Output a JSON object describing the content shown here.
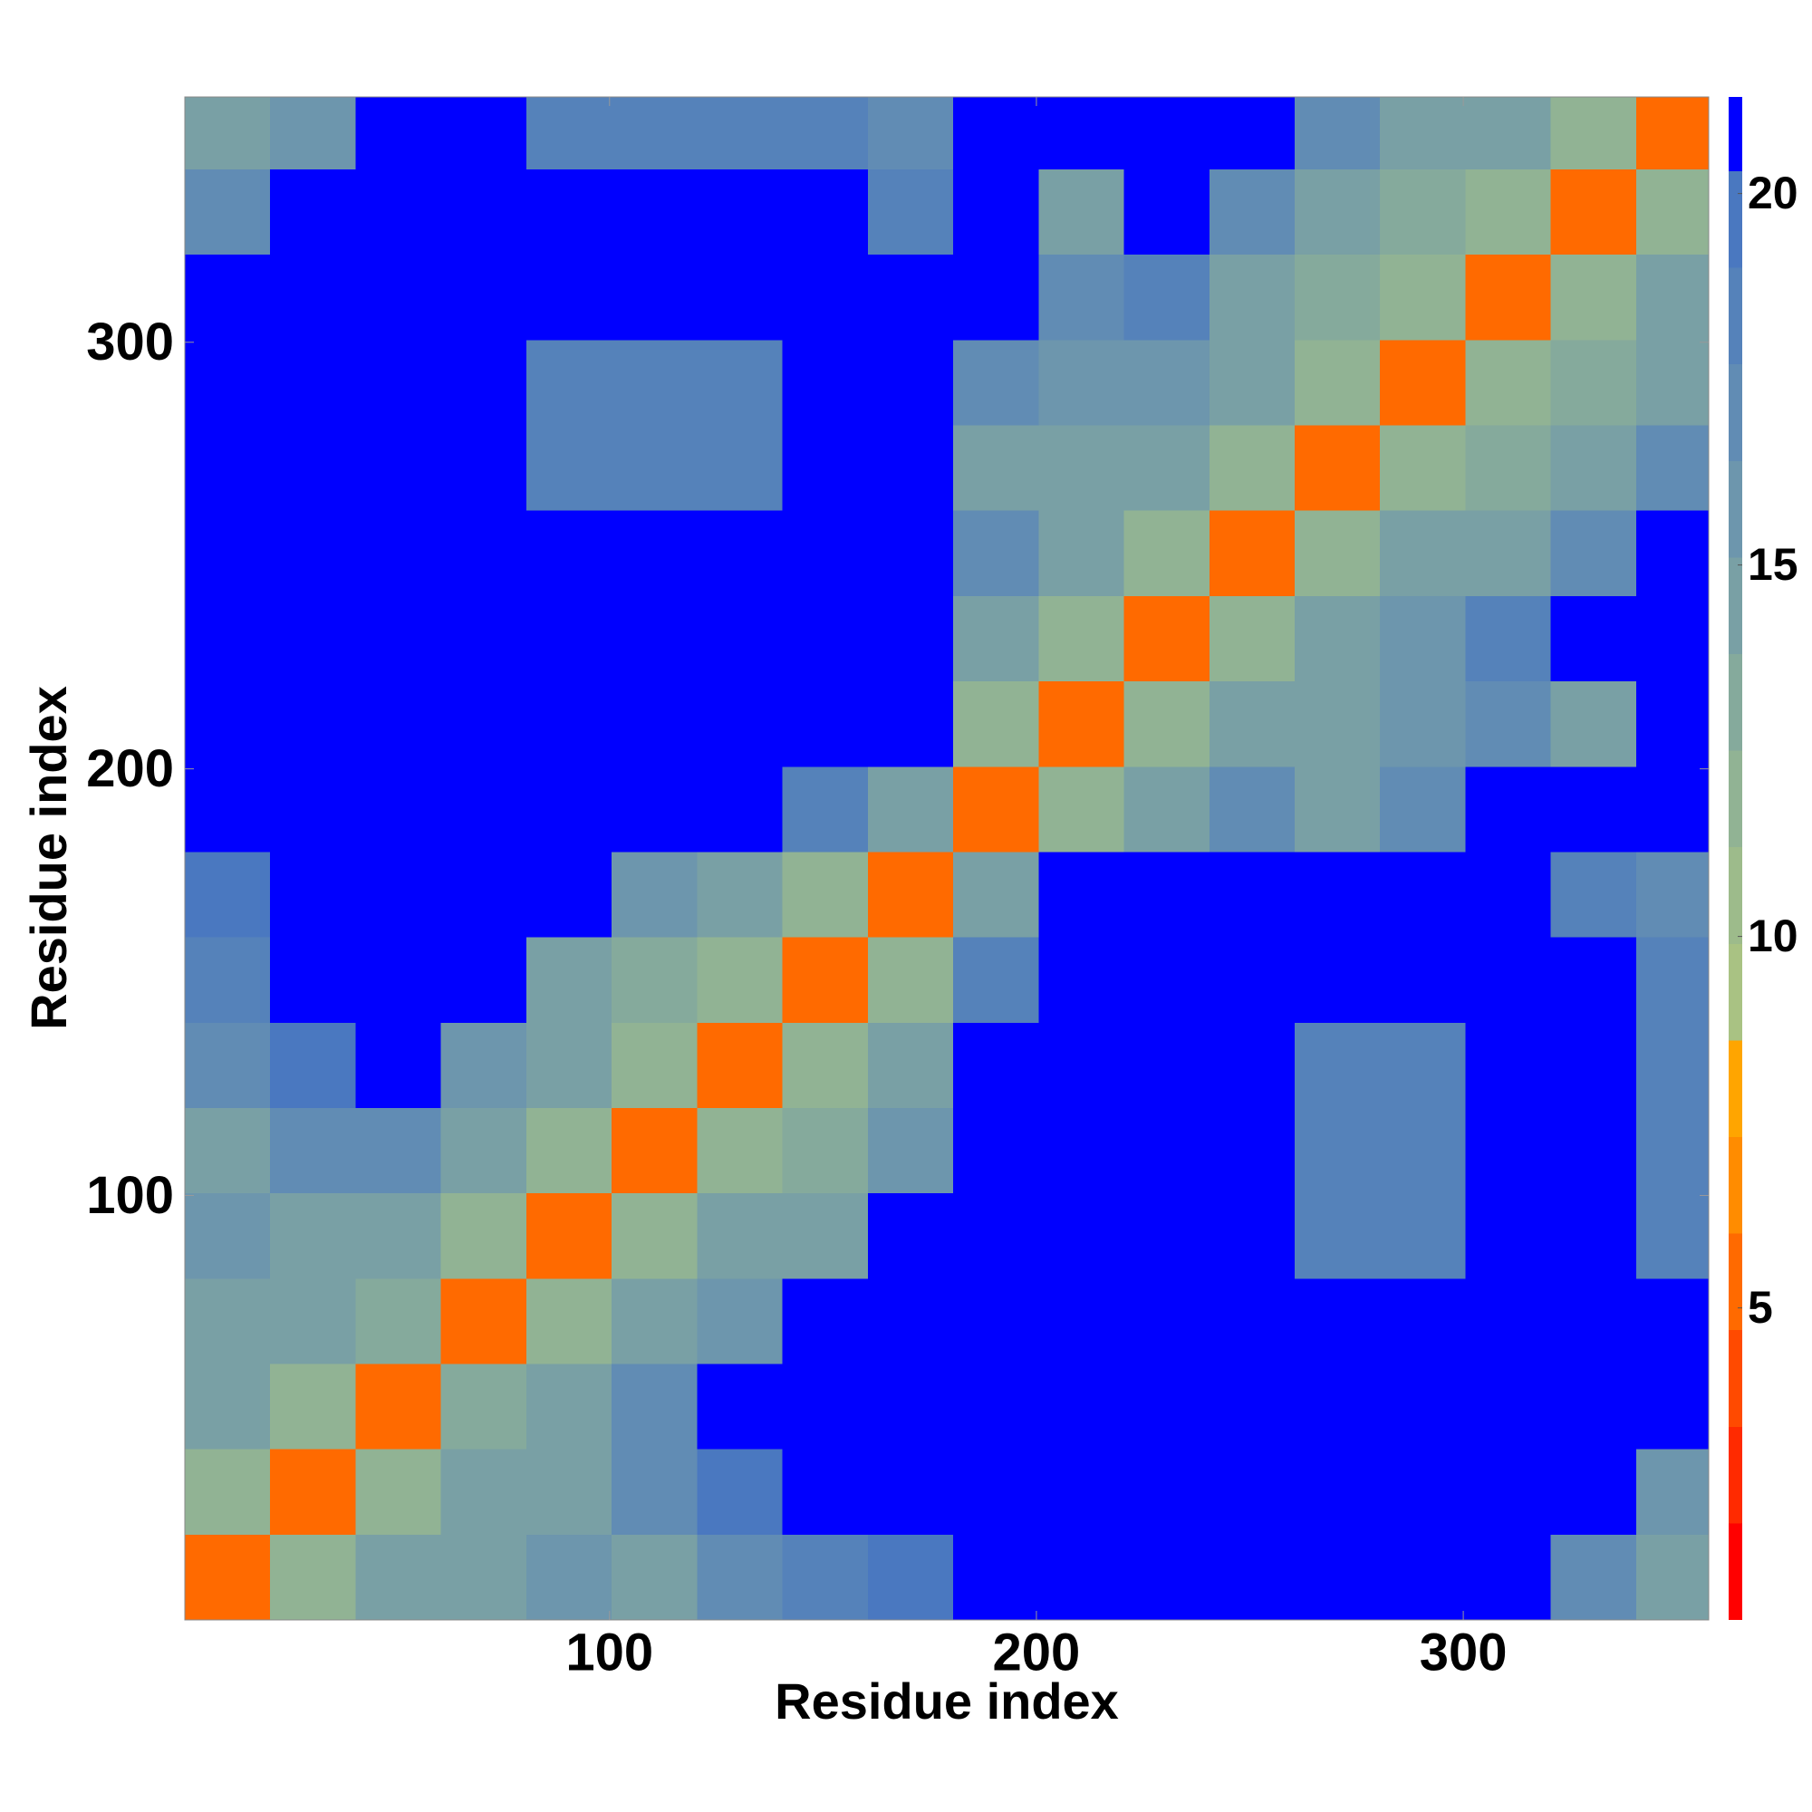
{
  "chart_data": {
    "type": "heatmap",
    "xlabel": "Residue index",
    "ylabel": "Residue index",
    "bins": [
      0.5,
      20.5,
      40.5,
      60.5,
      80.5,
      100.5,
      120.5,
      140.5,
      160.5,
      180.5,
      200.5,
      220.5,
      240.5,
      260.5,
      280.5,
      300.5,
      320.5,
      340.5,
      357.5
    ],
    "xlim": [
      0.5,
      357.5
    ],
    "ylim": [
      0.5,
      357.5
    ],
    "xticks": [
      100,
      200,
      300
    ],
    "yticks": [
      100,
      200,
      300
    ],
    "z": [
      [
        6,
        12,
        14,
        15,
        16,
        15,
        17,
        18,
        20,
        21,
        21,
        21,
        21,
        21,
        21,
        21,
        17,
        15
      ],
      [
        12,
        6,
        12,
        14,
        15,
        17,
        20,
        21,
        21,
        21,
        21,
        21,
        21,
        21,
        21,
        21,
        21,
        16
      ],
      [
        14,
        12,
        6,
        13,
        15,
        17,
        21,
        21,
        21,
        21,
        21,
        21,
        21,
        21,
        21,
        21,
        21,
        21
      ],
      [
        15,
        14,
        13,
        6,
        12,
        15,
        16,
        21,
        21,
        21,
        21,
        21,
        21,
        21,
        21,
        21,
        21,
        21
      ],
      [
        16,
        15,
        15,
        12,
        6,
        12,
        14,
        15,
        21,
        21,
        21,
        21,
        21,
        19,
        19,
        21,
        21,
        18
      ],
      [
        15,
        17,
        17,
        15,
        12,
        6,
        12,
        13,
        16,
        21,
        21,
        21,
        21,
        19,
        19,
        21,
        21,
        18
      ],
      [
        17,
        20,
        21,
        16,
        14,
        12,
        6,
        12,
        15,
        21,
        21,
        21,
        21,
        19,
        19,
        21,
        21,
        19
      ],
      [
        18,
        21,
        21,
        21,
        15,
        13,
        12,
        6,
        12,
        18,
        21,
        21,
        21,
        21,
        21,
        21,
        21,
        18
      ],
      [
        20,
        21,
        21,
        21,
        21,
        16,
        15,
        12,
        6,
        15,
        21,
        21,
        21,
        21,
        21,
        21,
        18,
        17
      ],
      [
        21,
        21,
        21,
        21,
        21,
        21,
        21,
        18,
        15,
        6,
        12,
        15,
        17,
        15,
        17,
        21,
        21,
        21
      ],
      [
        21,
        21,
        21,
        21,
        21,
        21,
        21,
        21,
        21,
        12,
        6,
        12,
        14,
        14,
        16,
        17,
        14,
        21
      ],
      [
        21,
        21,
        21,
        21,
        21,
        21,
        21,
        21,
        21,
        15,
        12,
        6,
        12,
        14,
        16,
        18,
        21,
        21
      ],
      [
        21,
        21,
        21,
        21,
        21,
        21,
        21,
        21,
        21,
        17,
        14,
        12,
        6,
        12,
        14,
        15,
        17,
        21
      ],
      [
        21,
        21,
        21,
        21,
        19,
        19,
        19,
        21,
        21,
        15,
        14,
        14,
        12,
        6,
        12,
        13,
        14,
        17
      ],
      [
        21,
        21,
        21,
        21,
        19,
        19,
        19,
        21,
        21,
        17,
        16,
        16,
        14,
        12,
        6,
        12,
        13,
        15
      ],
      [
        21,
        21,
        21,
        21,
        21,
        21,
        21,
        21,
        21,
        21,
        17,
        18,
        15,
        13,
        12,
        6,
        12,
        14
      ],
      [
        17,
        21,
        21,
        21,
        21,
        21,
        21,
        21,
        18,
        21,
        14,
        21,
        17,
        14,
        13,
        12,
        6,
        12
      ],
      [
        15,
        16,
        21,
        21,
        18,
        18,
        19,
        18,
        17,
        21,
        21,
        21,
        21,
        17,
        15,
        14,
        12,
        6
      ]
    ],
    "colorbar": {
      "clim": [
        0.8,
        21.3
      ],
      "ticks": [
        5,
        10,
        15,
        20
      ],
      "levels": [
        0.8,
        2.1,
        3.4,
        4.7,
        6.0,
        7.3,
        8.6,
        9.9,
        11.2,
        12.5,
        13.8,
        15.1,
        16.4,
        17.7,
        19.0,
        20.3,
        21.3
      ],
      "colors": [
        "#ff0000",
        "#ff2a00",
        "#ff4a00",
        "#ff6a00",
        "#ff8c00",
        "#ffa500",
        "#a9c283",
        "#9dbb8b",
        "#91b394",
        "#85aa9c",
        "#79a0a5",
        "#6d96ad",
        "#618cb4",
        "#5582ba",
        "#4a78c0",
        "#0000ff"
      ]
    }
  }
}
